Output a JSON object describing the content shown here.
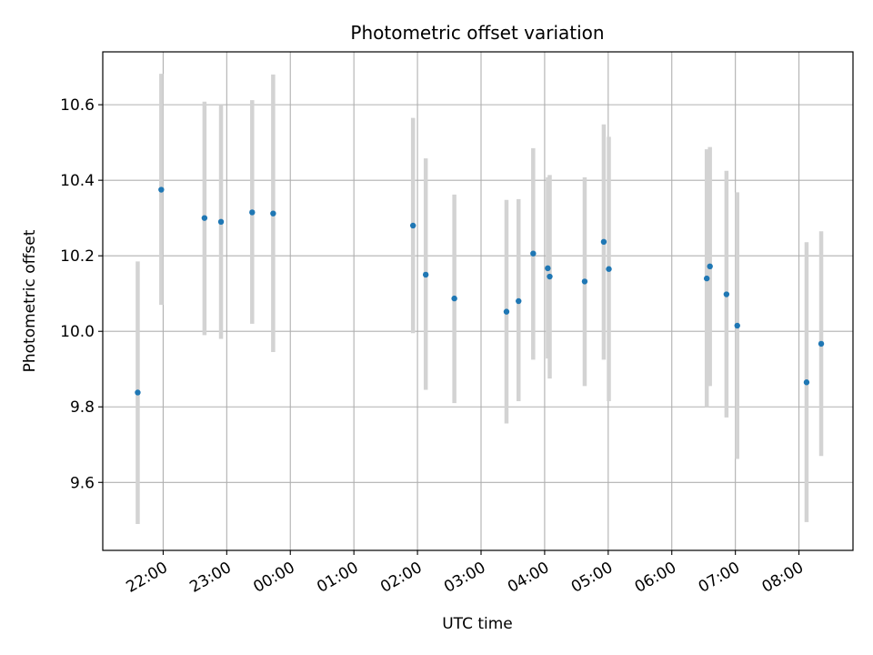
{
  "chart_data": {
    "type": "scatter",
    "title": "Photometric offset variation",
    "xlabel": "UTC time",
    "ylabel": "Photometric offset",
    "grid": true,
    "x_range_hours": [
      -2.95,
      8.85
    ],
    "ylim": [
      9.42,
      10.74
    ],
    "x_ticks": [
      {
        "hour": -2,
        "label": "22:00"
      },
      {
        "hour": -1,
        "label": "23:00"
      },
      {
        "hour": 0,
        "label": "00:00"
      },
      {
        "hour": 1,
        "label": "01:00"
      },
      {
        "hour": 2,
        "label": "02:00"
      },
      {
        "hour": 3,
        "label": "03:00"
      },
      {
        "hour": 4,
        "label": "04:00"
      },
      {
        "hour": 5,
        "label": "05:00"
      },
      {
        "hour": 6,
        "label": "06:00"
      },
      {
        "hour": 7,
        "label": "07:00"
      },
      {
        "hour": 8,
        "label": "08:00"
      }
    ],
    "y_ticks": [
      {
        "value": 9.6,
        "label": "9.6"
      },
      {
        "value": 9.8,
        "label": "9.8"
      },
      {
        "value": 10.0,
        "label": "10.0"
      },
      {
        "value": 10.2,
        "label": "10.2"
      },
      {
        "value": 10.4,
        "label": "10.4"
      },
      {
        "value": 10.6,
        "label": "10.6"
      }
    ],
    "marker_color": "#1f77b4",
    "errorbar_color": "#d3d3d3",
    "points": [
      {
        "time": "21:36",
        "hour": -2.4,
        "y": 9.838,
        "err_low": 9.49,
        "err_high": 10.185
      },
      {
        "time": "21:58",
        "hour": -2.03,
        "y": 10.375,
        "err_low": 10.07,
        "err_high": 10.682
      },
      {
        "time": "22:39",
        "hour": -1.35,
        "y": 10.3,
        "err_low": 9.99,
        "err_high": 10.608
      },
      {
        "time": "22:55",
        "hour": -1.09,
        "y": 10.29,
        "err_low": 9.98,
        "err_high": 10.598
      },
      {
        "time": "23:24",
        "hour": -0.6,
        "y": 10.315,
        "err_low": 10.02,
        "err_high": 10.612
      },
      {
        "time": "23:44",
        "hour": -0.27,
        "y": 10.312,
        "err_low": 9.945,
        "err_high": 10.68
      },
      {
        "time": "01:56",
        "hour": 1.93,
        "y": 10.28,
        "err_low": 9.995,
        "err_high": 10.565
      },
      {
        "time": "02:08",
        "hour": 2.13,
        "y": 10.15,
        "err_low": 9.845,
        "err_high": 10.458
      },
      {
        "time": "02:35",
        "hour": 2.58,
        "y": 10.087,
        "err_low": 9.81,
        "err_high": 10.362
      },
      {
        "time": "03:24",
        "hour": 3.4,
        "y": 10.052,
        "err_low": 9.756,
        "err_high": 10.348
      },
      {
        "time": "03:35",
        "hour": 3.59,
        "y": 10.08,
        "err_low": 9.815,
        "err_high": 10.35
      },
      {
        "time": "03:49",
        "hour": 3.82,
        "y": 10.206,
        "err_low": 9.925,
        "err_high": 10.485
      },
      {
        "time": "04:03",
        "hour": 4.05,
        "y": 10.167,
        "err_low": 9.928,
        "err_high": 10.408
      },
      {
        "time": "04:05",
        "hour": 4.08,
        "y": 10.145,
        "err_low": 9.875,
        "err_high": 10.414
      },
      {
        "time": "04:38",
        "hour": 4.63,
        "y": 10.132,
        "err_low": 9.855,
        "err_high": 10.408
      },
      {
        "time": "04:56",
        "hour": 4.93,
        "y": 10.237,
        "err_low": 9.925,
        "err_high": 10.548
      },
      {
        "time": "05:01",
        "hour": 5.01,
        "y": 10.165,
        "err_low": 9.815,
        "err_high": 10.515
      },
      {
        "time": "06:33",
        "hour": 6.55,
        "y": 10.14,
        "err_low": 9.8,
        "err_high": 10.482
      },
      {
        "time": "06:36",
        "hour": 6.6,
        "y": 10.172,
        "err_low": 9.855,
        "err_high": 10.488
      },
      {
        "time": "06:52",
        "hour": 6.86,
        "y": 10.098,
        "err_low": 9.772,
        "err_high": 10.425
      },
      {
        "time": "07:02",
        "hour": 7.03,
        "y": 10.015,
        "err_low": 9.662,
        "err_high": 10.368
      },
      {
        "time": "08:07",
        "hour": 8.12,
        "y": 9.865,
        "err_low": 9.495,
        "err_high": 10.236
      },
      {
        "time": "08:21",
        "hour": 8.35,
        "y": 9.967,
        "err_low": 9.67,
        "err_high": 10.265
      }
    ]
  }
}
